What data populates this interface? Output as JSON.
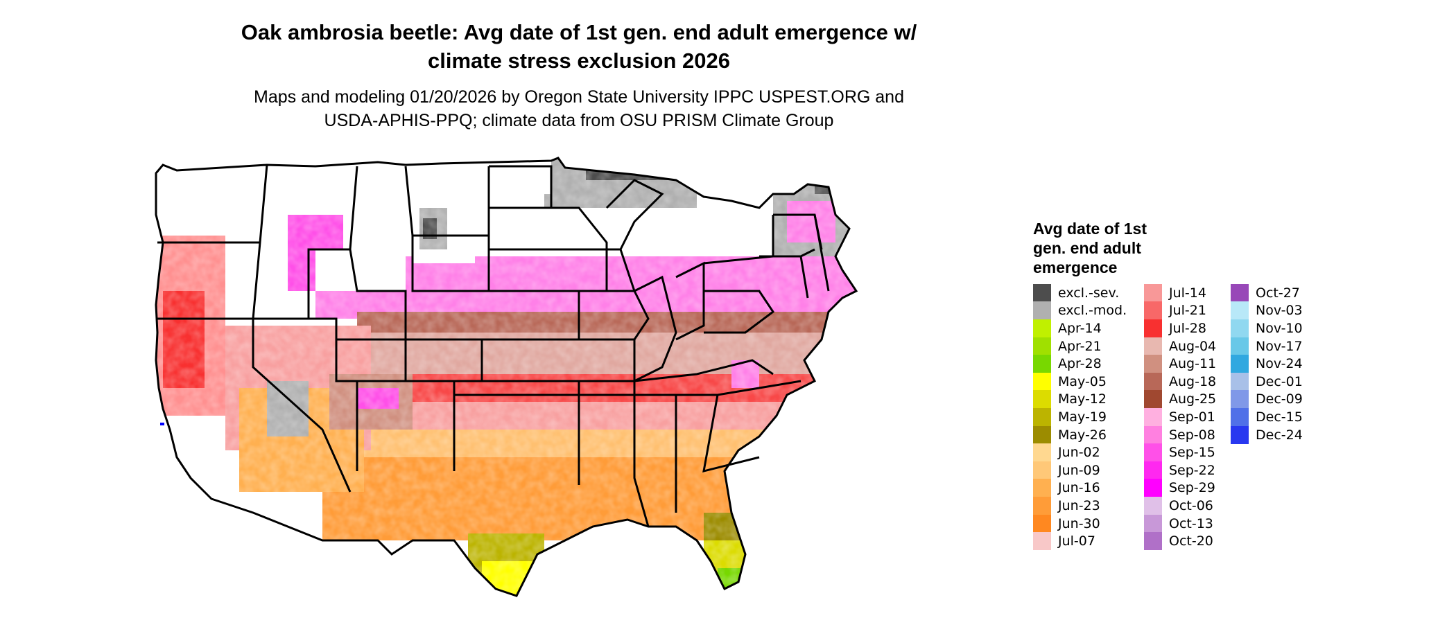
{
  "title_line1": "Oak ambrosia beetle: Avg date of 1st gen. end adult emergence w/",
  "title_line2": "climate stress exclusion 2026",
  "subtitle_line1": "Maps and modeling 01/20/2026 by Oregon State University IPPC USPEST.ORG and",
  "subtitle_line2": "USDA-APHIS-PPQ; climate data from OSU PRISM Climate Group",
  "legend": {
    "title_line1": "Avg date of 1st",
    "title_line2": "gen. end adult",
    "title_line3": "emergence",
    "items": [
      {
        "label": "excl.-sev.",
        "color": "#4d4d4d"
      },
      {
        "label": "excl.-mod.",
        "color": "#b0b0b0"
      },
      {
        "label": "Apr-14",
        "color": "#c0f000"
      },
      {
        "label": "Apr-21",
        "color": "#a0e000"
      },
      {
        "label": "Apr-28",
        "color": "#78d800"
      },
      {
        "label": "May-05",
        "color": "#ffff00"
      },
      {
        "label": "May-12",
        "color": "#dcdc00"
      },
      {
        "label": "May-19",
        "color": "#bcb400"
      },
      {
        "label": "May-26",
        "color": "#9c8c00"
      },
      {
        "label": "Jun-02",
        "color": "#ffd890"
      },
      {
        "label": "Jun-09",
        "color": "#ffc878"
      },
      {
        "label": "Jun-16",
        "color": "#ffb050"
      },
      {
        "label": "Jun-23",
        "color": "#ff9c38"
      },
      {
        "label": "Jun-30",
        "color": "#ff8820"
      },
      {
        "label": "Jul-07",
        "color": "#f8c8c8"
      },
      {
        "label": "Jul-14",
        "color": "#f89898"
      },
      {
        "label": "Jul-21",
        "color": "#f86868"
      },
      {
        "label": "Jul-28",
        "color": "#f83030"
      },
      {
        "label": "Aug-04",
        "color": "#e8b8b0"
      },
      {
        "label": "Aug-11",
        "color": "#d09080"
      },
      {
        "label": "Aug-18",
        "color": "#b86858"
      },
      {
        "label": "Aug-25",
        "color": "#a04830"
      },
      {
        "label": "Sep-01",
        "color": "#ffb0e0"
      },
      {
        "label": "Sep-08",
        "color": "#ff80e0"
      },
      {
        "label": "Sep-15",
        "color": "#ff50e8"
      },
      {
        "label": "Sep-22",
        "color": "#ff28f0"
      },
      {
        "label": "Sep-29",
        "color": "#ff00ff"
      },
      {
        "label": "Oct-06",
        "color": "#e0c0e8"
      },
      {
        "label": "Oct-13",
        "color": "#c898d8"
      },
      {
        "label": "Oct-20",
        "color": "#b070c8"
      },
      {
        "label": "Oct-27",
        "color": "#9848b8"
      },
      {
        "label": "Nov-03",
        "color": "#b8e8f8"
      },
      {
        "label": "Nov-10",
        "color": "#90d8f0"
      },
      {
        "label": "Nov-17",
        "color": "#68c8e8"
      },
      {
        "label": "Nov-24",
        "color": "#30a8e0"
      },
      {
        "label": "Dec-01",
        "color": "#a8c0e8"
      },
      {
        "label": "Dec-09",
        "color": "#8098e8"
      },
      {
        "label": "Dec-15",
        "color": "#5070e8"
      },
      {
        "label": "Dec-24",
        "color": "#2838f0"
      }
    ]
  }
}
